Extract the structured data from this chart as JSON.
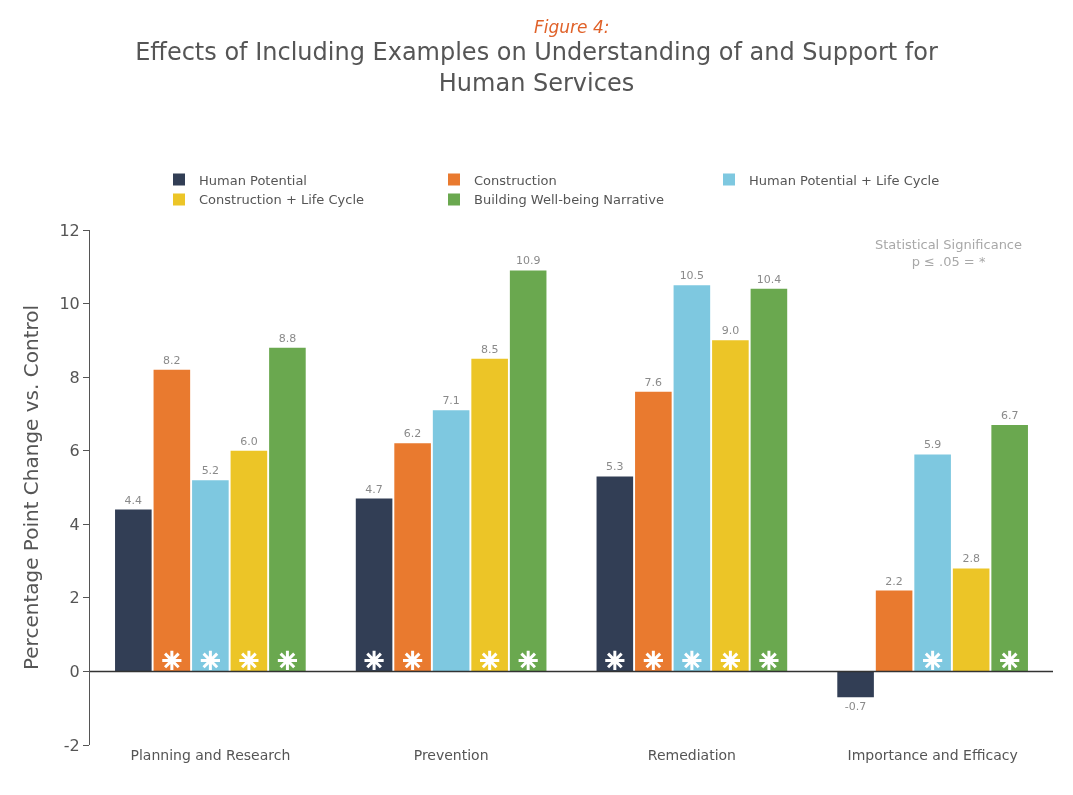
{
  "chart_data": {
    "type": "bar",
    "subtitle": "Figure 4:",
    "title": "Effects of Including Examples on Understanding of and Support for Human Services",
    "ylabel": "Percentage Point Change vs. Control",
    "categories": [
      "Planning and Research",
      "Prevention",
      "Remediation",
      "Importance and Efficacy"
    ],
    "series": [
      {
        "name": "Human Potential",
        "color": "#323e55",
        "values": [
          4.4,
          4.7,
          5.3,
          -0.7
        ],
        "value_labels": [
          "4.4",
          "4.7",
          "5.3",
          "-0.7"
        ]
      },
      {
        "name": "Construction",
        "color": "#e97a2f",
        "values": [
          8.2,
          6.2,
          7.6,
          2.2
        ],
        "value_labels": [
          "8.2",
          "6.2",
          "7.6",
          "2.2"
        ]
      },
      {
        "name": "Human Potential + Life Cycle",
        "color": "#7ec8e0",
        "values": [
          5.2,
          7.1,
          10.5,
          5.9
        ],
        "value_labels": [
          "5.2",
          "7.1",
          "10.5",
          "5.9"
        ]
      },
      {
        "name": "Construction + Life Cycle",
        "color": "#ecc527",
        "values": [
          6.0,
          8.5,
          9.0,
          2.8
        ],
        "value_labels": [
          "6.0",
          "8.5",
          "9.0",
          "2.8"
        ]
      },
      {
        "name": "Building Well-being Narrative",
        "color": "#6aa84f",
        "values": [
          8.8,
          10.9,
          10.4,
          6.7
        ],
        "value_labels": [
          "8.8",
          "10.9",
          "10.4",
          "6.7"
        ]
      },
      {
        "type": "scatter",
        "marker": "cross",
        "color": "#ffffff",
        "values": [
          null,
          0.3,
          0.3,
          null
        ]
      },
      {
        "type": "scatter",
        "marker": "cross",
        "color": "#ffffff",
        "values": [
          0.3,
          0.3,
          0.3,
          null
        ]
      },
      {
        "type": "scatter",
        "marker": "cross",
        "color": "#ffffff",
        "values": [
          0.3,
          null,
          0.3,
          0.3
        ]
      },
      {
        "type": "scatter",
        "marker": "cross",
        "color": "#ffffff",
        "values": [
          0.3,
          0.3,
          0.3,
          null
        ]
      },
      {
        "type": "scatter",
        "marker": "cross",
        "color": "#ffffff",
        "values": [
          0.3,
          0.3,
          0.3,
          0.3
        ]
      }
    ],
    "ylim": [
      -2,
      12
    ],
    "yticks": [
      -2,
      0,
      2,
      4,
      6,
      8,
      10,
      12
    ],
    "ref_lines": [
      {
        "axis": "y",
        "value": 0,
        "color": "#333333"
      }
    ],
    "legend": "top",
    "annotations": [
      "Statistical Significance\np ≤ .05 = *"
    ]
  }
}
